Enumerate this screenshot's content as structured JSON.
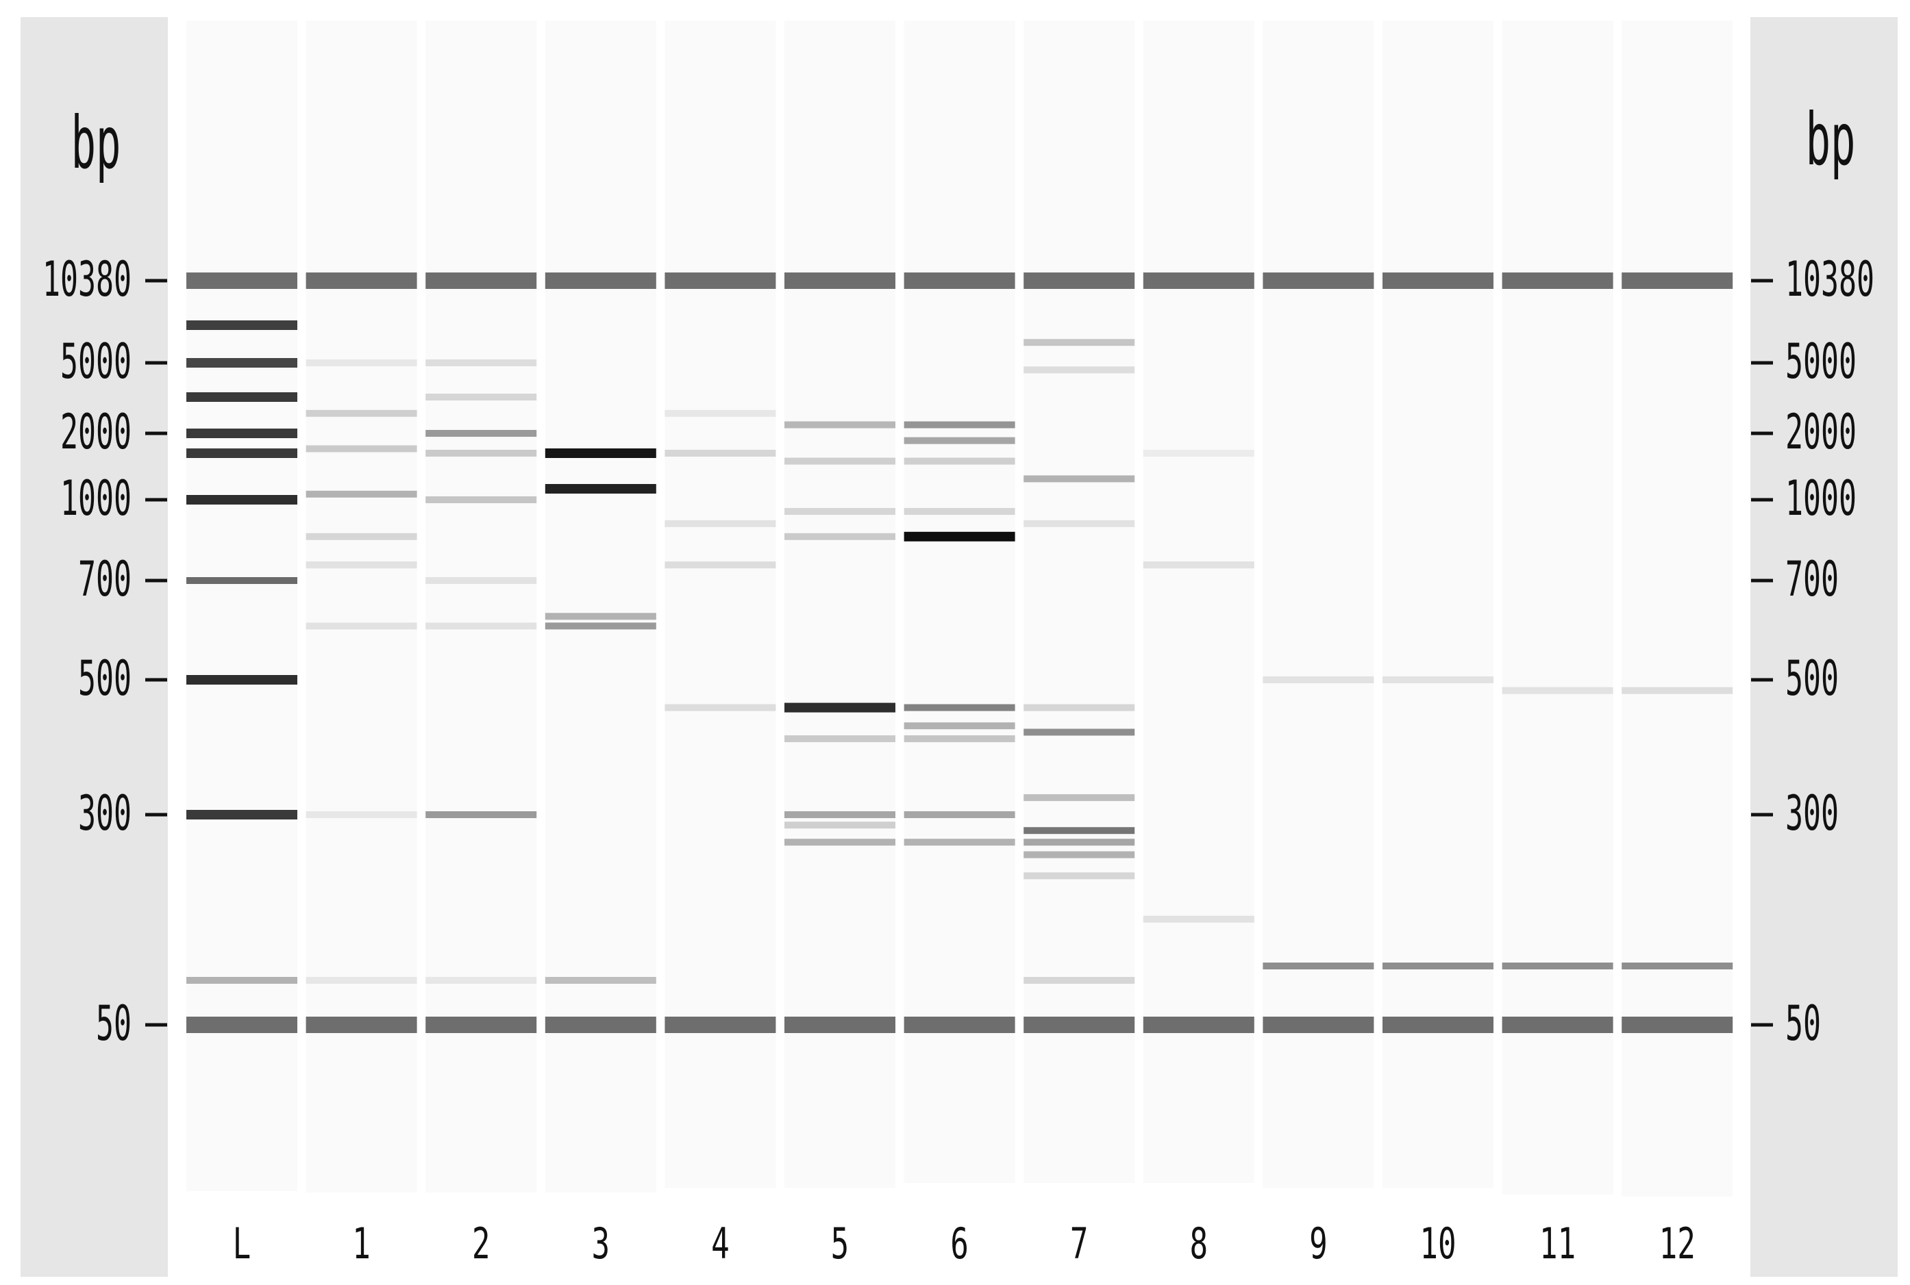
{
  "gel": {
    "unit_label": "bp",
    "ladder_ticks": [
      "10380",
      "5000",
      "2000",
      "1000",
      "700",
      "500",
      "300",
      "50"
    ],
    "lanes": [
      {
        "label": "L",
        "bands": [
          {
            "size": 10380,
            "intensity": 0.62
          },
          {
            "size": 7000,
            "intensity": 0.78
          },
          {
            "size": 5000,
            "intensity": 0.75
          },
          {
            "size": 3000,
            "intensity": 0.8
          },
          {
            "size": 2000,
            "intensity": 0.8
          },
          {
            "size": 1500,
            "intensity": 0.8
          },
          {
            "size": 1000,
            "intensity": 0.85
          },
          {
            "size": 700,
            "intensity": 0.6
          },
          {
            "size": 500,
            "intensity": 0.85
          },
          {
            "size": 300,
            "intensity": 0.8
          },
          {
            "size": 100,
            "intensity": 0.3
          },
          {
            "size": 50,
            "intensity": 0.62
          }
        ]
      },
      {
        "label": "1",
        "bands": [
          {
            "size": 10380,
            "intensity": 0.62
          },
          {
            "size": 5000,
            "intensity": 0.08
          },
          {
            "size": 2500,
            "intensity": 0.18
          },
          {
            "size": 1600,
            "intensity": 0.2
          },
          {
            "size": 1050,
            "intensity": 0.3
          },
          {
            "size": 850,
            "intensity": 0.15
          },
          {
            "size": 750,
            "intensity": 0.1
          },
          {
            "size": 600,
            "intensity": 0.1
          },
          {
            "size": 300,
            "intensity": 0.08
          },
          {
            "size": 100,
            "intensity": 0.08
          },
          {
            "size": 50,
            "intensity": 0.62
          }
        ]
      },
      {
        "label": "2",
        "bands": [
          {
            "size": 10380,
            "intensity": 0.62
          },
          {
            "size": 5000,
            "intensity": 0.12
          },
          {
            "size": 3000,
            "intensity": 0.15
          },
          {
            "size": 2000,
            "intensity": 0.4
          },
          {
            "size": 1500,
            "intensity": 0.2
          },
          {
            "size": 1000,
            "intensity": 0.22
          },
          {
            "size": 700,
            "intensity": 0.1
          },
          {
            "size": 600,
            "intensity": 0.1
          },
          {
            "size": 300,
            "intensity": 0.4
          },
          {
            "size": 100,
            "intensity": 0.08
          },
          {
            "size": 50,
            "intensity": 0.62
          }
        ]
      },
      {
        "label": "3",
        "bands": [
          {
            "size": 10380,
            "intensity": 0.62
          },
          {
            "size": 1500,
            "intensity": 0.95
          },
          {
            "size": 1100,
            "intensity": 0.9
          },
          {
            "size": 620,
            "intensity": 0.3
          },
          {
            "size": 600,
            "intensity": 0.4
          },
          {
            "size": 100,
            "intensity": 0.25
          },
          {
            "size": 50,
            "intensity": 0.62
          }
        ]
      },
      {
        "label": "4",
        "bands": [
          {
            "size": 10380,
            "intensity": 0.62
          },
          {
            "size": 2500,
            "intensity": 0.08
          },
          {
            "size": 1500,
            "intensity": 0.15
          },
          {
            "size": 900,
            "intensity": 0.1
          },
          {
            "size": 750,
            "intensity": 0.12
          },
          {
            "size": 450,
            "intensity": 0.12
          },
          {
            "size": 50,
            "intensity": 0.62
          }
        ]
      },
      {
        "label": "5",
        "bands": [
          {
            "size": 10380,
            "intensity": 0.62
          },
          {
            "size": 2200,
            "intensity": 0.28
          },
          {
            "size": 1400,
            "intensity": 0.18
          },
          {
            "size": 950,
            "intensity": 0.15
          },
          {
            "size": 850,
            "intensity": 0.2
          },
          {
            "size": 450,
            "intensity": 0.85
          },
          {
            "size": 400,
            "intensity": 0.2
          },
          {
            "size": 300,
            "intensity": 0.35
          },
          {
            "size": 280,
            "intensity": 0.18
          },
          {
            "size": 250,
            "intensity": 0.3
          },
          {
            "size": 50,
            "intensity": 0.62
          }
        ]
      },
      {
        "label": "6",
        "bands": [
          {
            "size": 10380,
            "intensity": 0.62
          },
          {
            "size": 2200,
            "intensity": 0.42
          },
          {
            "size": 1800,
            "intensity": 0.35
          },
          {
            "size": 1400,
            "intensity": 0.18
          },
          {
            "size": 950,
            "intensity": 0.15
          },
          {
            "size": 850,
            "intensity": 0.98
          },
          {
            "size": 450,
            "intensity": 0.5
          },
          {
            "size": 420,
            "intensity": 0.3
          },
          {
            "size": 400,
            "intensity": 0.22
          },
          {
            "size": 300,
            "intensity": 0.35
          },
          {
            "size": 250,
            "intensity": 0.3
          },
          {
            "size": 50,
            "intensity": 0.62
          }
        ]
      },
      {
        "label": "7",
        "bands": [
          {
            "size": 10380,
            "intensity": 0.62
          },
          {
            "size": 6000,
            "intensity": 0.22
          },
          {
            "size": 4500,
            "intensity": 0.12
          },
          {
            "size": 1200,
            "intensity": 0.3
          },
          {
            "size": 900,
            "intensity": 0.1
          },
          {
            "size": 450,
            "intensity": 0.15
          },
          {
            "size": 410,
            "intensity": 0.45
          },
          {
            "size": 320,
            "intensity": 0.25
          },
          {
            "size": 270,
            "intensity": 0.55
          },
          {
            "size": 250,
            "intensity": 0.35
          },
          {
            "size": 230,
            "intensity": 0.3
          },
          {
            "size": 200,
            "intensity": 0.15
          },
          {
            "size": 100,
            "intensity": 0.15
          },
          {
            "size": 50,
            "intensity": 0.62
          }
        ]
      },
      {
        "label": "8",
        "bands": [
          {
            "size": 10380,
            "intensity": 0.62
          },
          {
            "size": 1500,
            "intensity": 0.06
          },
          {
            "size": 750,
            "intensity": 0.1
          },
          {
            "size": 150,
            "intensity": 0.1
          },
          {
            "size": 50,
            "intensity": 0.62
          }
        ]
      },
      {
        "label": "9",
        "bands": [
          {
            "size": 10380,
            "intensity": 0.62
          },
          {
            "size": 500,
            "intensity": 0.1
          },
          {
            "size": 110,
            "intensity": 0.45
          },
          {
            "size": 50,
            "intensity": 0.62
          }
        ]
      },
      {
        "label": "10",
        "bands": [
          {
            "size": 10380,
            "intensity": 0.62
          },
          {
            "size": 500,
            "intensity": 0.1
          },
          {
            "size": 110,
            "intensity": 0.45
          },
          {
            "size": 50,
            "intensity": 0.62
          }
        ]
      },
      {
        "label": "11",
        "bands": [
          {
            "size": 10380,
            "intensity": 0.62
          },
          {
            "size": 480,
            "intensity": 0.1
          },
          {
            "size": 110,
            "intensity": 0.45
          },
          {
            "size": 50,
            "intensity": 0.62
          }
        ]
      },
      {
        "label": "12",
        "bands": [
          {
            "size": 10380,
            "intensity": 0.62
          },
          {
            "size": 480,
            "intensity": 0.12
          },
          {
            "size": 110,
            "intensity": 0.45
          },
          {
            "size": 50,
            "intensity": 0.62
          }
        ]
      }
    ]
  }
}
